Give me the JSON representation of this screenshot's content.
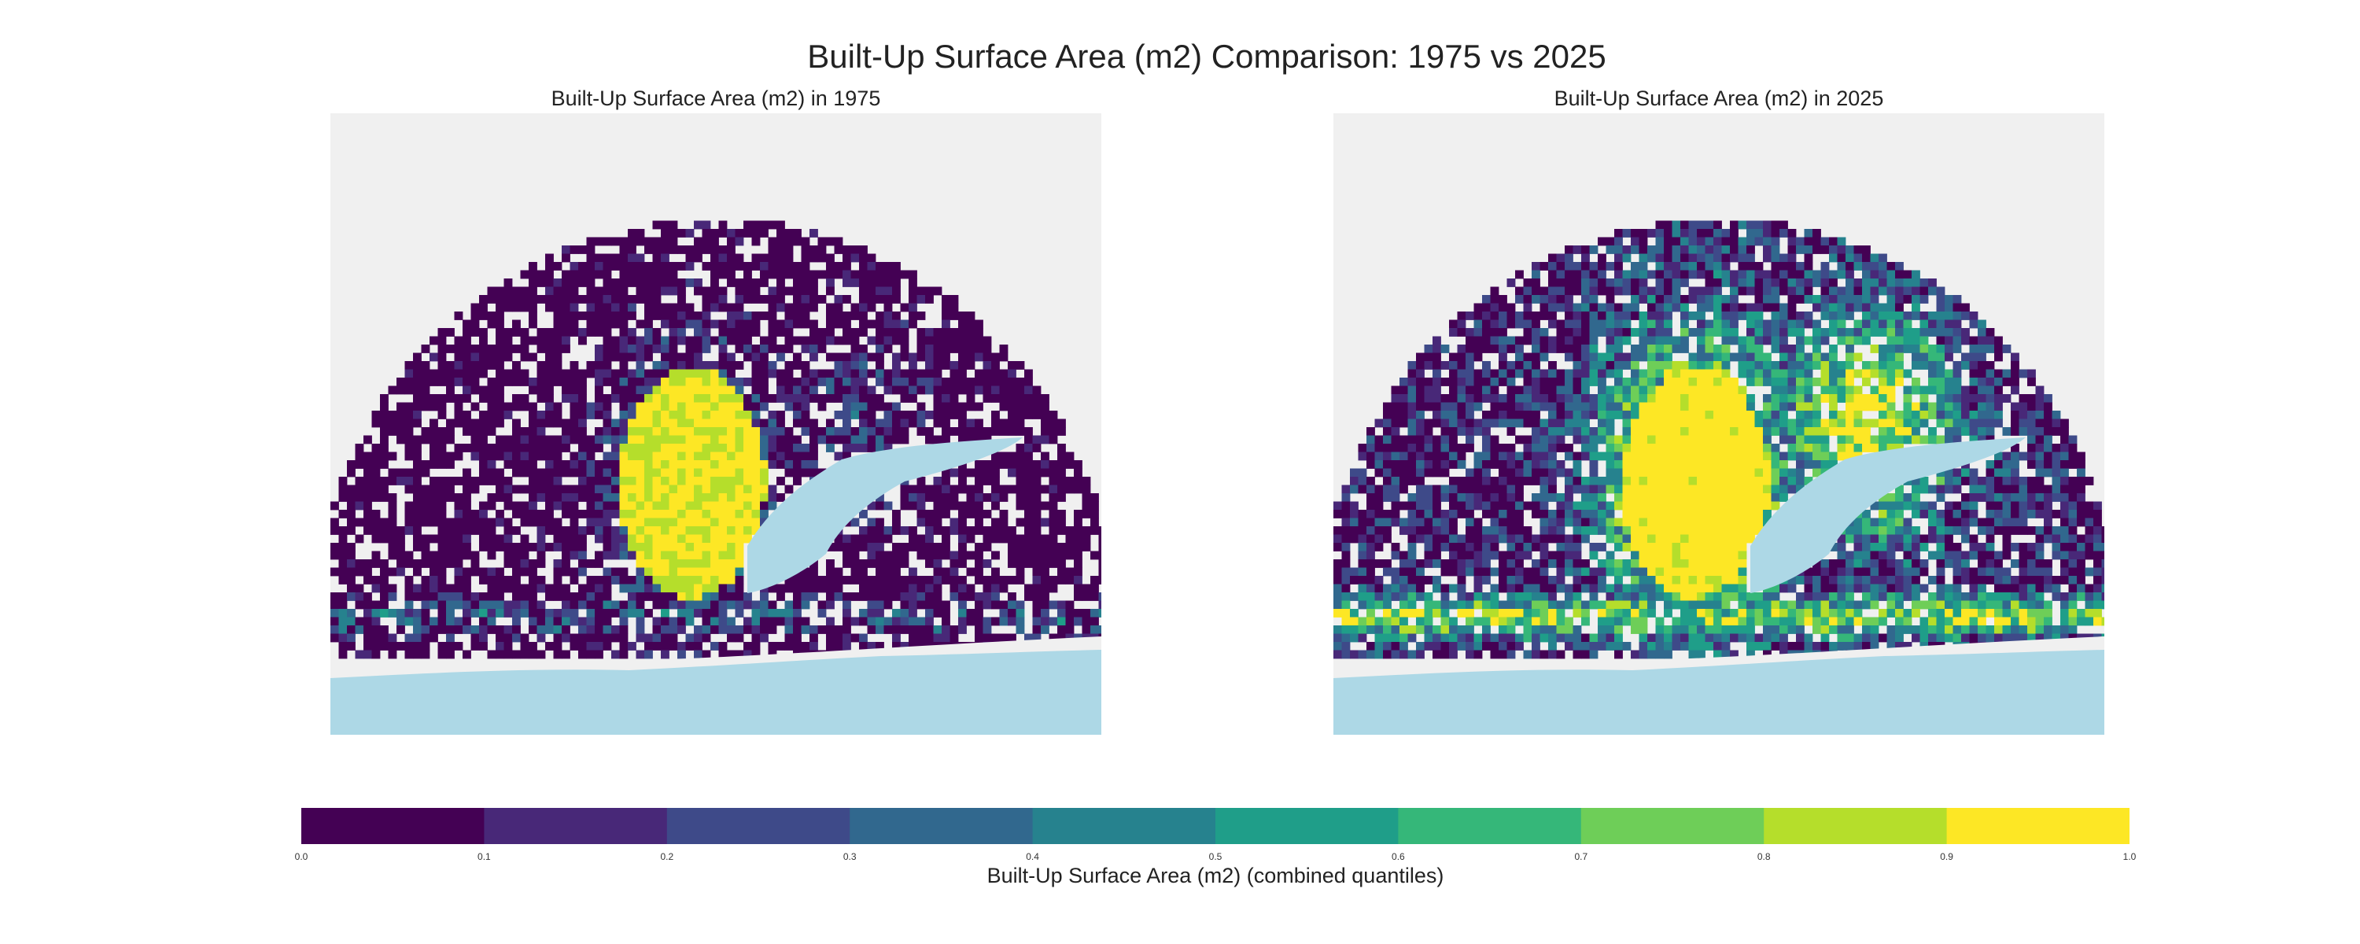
{
  "chart_data": {
    "type": "heatmap",
    "title": "Built-Up Surface Area (m2) Comparison: 1975 vs 2025",
    "colormap": "viridis",
    "colors": [
      "#440154",
      "#482878",
      "#3e4a89",
      "#31688e",
      "#26828e",
      "#1f9e89",
      "#35b779",
      "#6ece58",
      "#b5de2b",
      "#fde725"
    ],
    "water_color": "#add8e6",
    "background_color": "#f0f0f0",
    "grid": false,
    "panels": [
      {
        "title": "Built-Up Surface Area (m2) in 1975",
        "year": "1975",
        "urban_intensity": 0.55,
        "core_value": 0.95
      },
      {
        "title": "Built-Up Surface Area (m2) in 2025",
        "year": "2025",
        "urban_intensity": 0.9,
        "core_value": 0.97
      }
    ],
    "colorbar": {
      "label": "Built-Up Surface Area (m2) (combined quantiles)",
      "boundaries": [
        0.0,
        0.1,
        0.2,
        0.3,
        0.4,
        0.5,
        0.6,
        0.7,
        0.8,
        0.9,
        1.0
      ],
      "tick_labels": [
        "0.0",
        "0.1",
        "0.2",
        "0.3",
        "0.4",
        "0.5",
        "0.6",
        "0.7",
        "0.8",
        "0.9",
        "1.0"
      ],
      "orientation": "horizontal",
      "placement": "bottom"
    }
  }
}
